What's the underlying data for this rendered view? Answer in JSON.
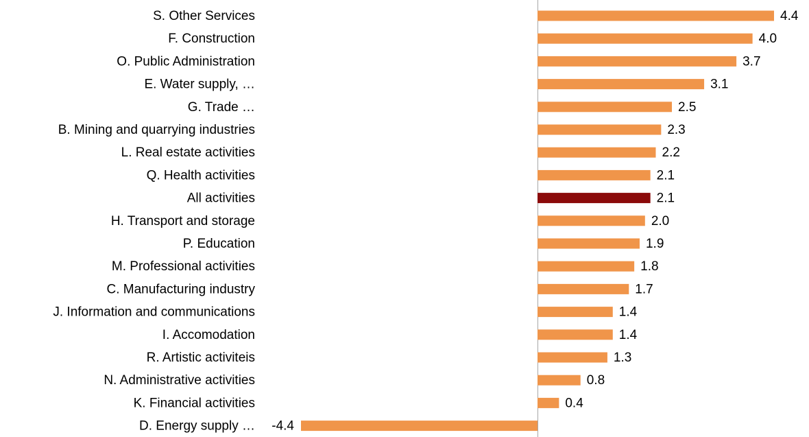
{
  "chart_data": {
    "type": "bar",
    "orientation": "horizontal",
    "categories": [
      "S. Other Services",
      "F. Construction",
      "O. Public Administration",
      "E. Water supply, …",
      "G. Trade …",
      "B. Mining and quarrying industries",
      "L. Real estate activities",
      "Q. Health activities",
      "All activities",
      "H. Transport and storage",
      "P. Education",
      "M. Professional activities",
      "C. Manufacturing industry",
      "J. Information and communications",
      "I. Accomodation",
      "R. Artistic activiteis",
      "N. Administrative activities",
      "K. Financial activities",
      "D. Energy supply …"
    ],
    "values": [
      4.4,
      4.0,
      3.7,
      3.1,
      2.5,
      2.3,
      2.2,
      2.1,
      2.1,
      2.0,
      1.9,
      1.8,
      1.7,
      1.4,
      1.4,
      1.3,
      0.8,
      0.4,
      -4.4
    ],
    "value_labels": [
      "4.4",
      "4.0",
      "3.7",
      "3.1",
      "2.5",
      "2.3",
      "2.2",
      "2.1",
      "2.1",
      "2.0",
      "1.9",
      "1.8",
      "1.7",
      "1.4",
      "1.4",
      "1.3",
      "0.8",
      "0.4",
      "-4.4"
    ],
    "colors": [
      "#f0954a",
      "#f0954a",
      "#f0954a",
      "#f0954a",
      "#f0954a",
      "#f0954a",
      "#f0954a",
      "#f0954a",
      "#8b0a0a",
      "#f0954a",
      "#f0954a",
      "#f0954a",
      "#f0954a",
      "#f0954a",
      "#f0954a",
      "#f0954a",
      "#f0954a",
      "#f0954a",
      "#f0954a"
    ]
  }
}
